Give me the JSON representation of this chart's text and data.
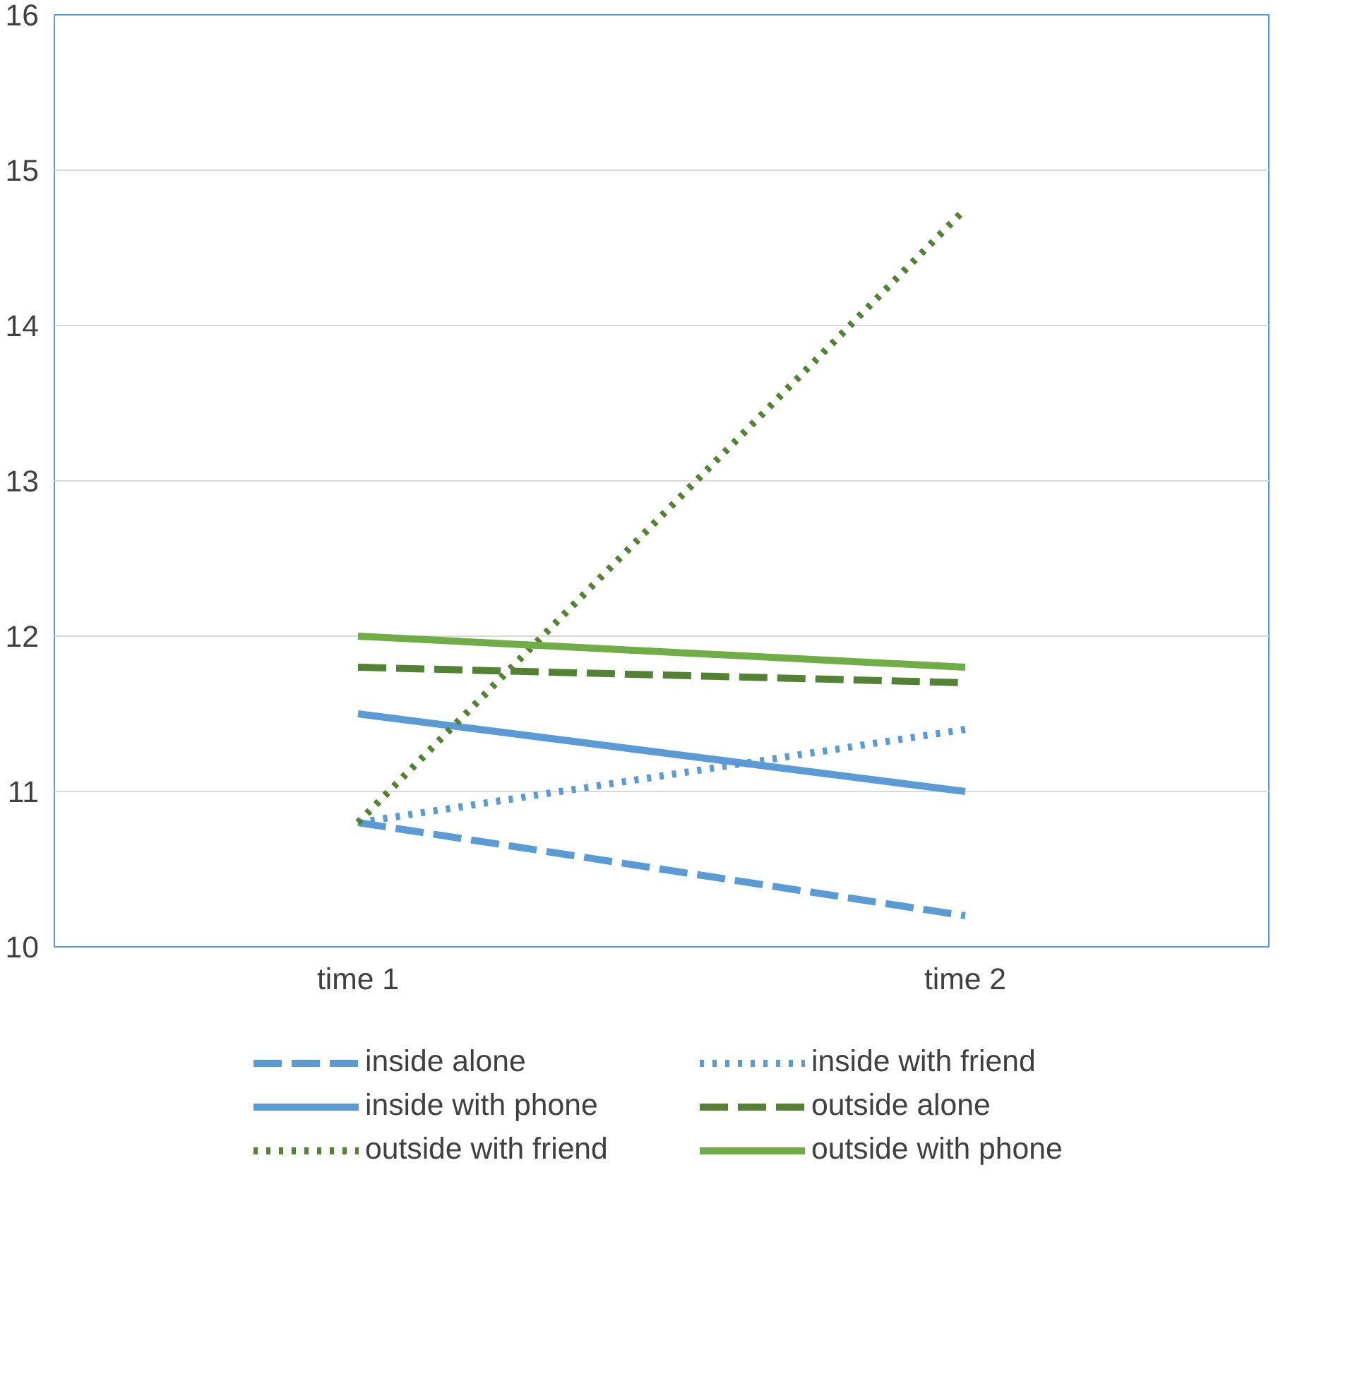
{
  "chart_data": {
    "type": "line",
    "categories": [
      "time 1",
      "time 2"
    ],
    "ylim": [
      10,
      16
    ],
    "yticks": [
      10,
      11,
      12,
      13,
      14,
      15,
      16
    ],
    "grid": "y",
    "legend": "bottom",
    "marker": "none",
    "series": [
      {
        "name": "inside alone",
        "color": "#5b9bd5",
        "line_style": "dashed",
        "values": [
          10.8,
          10.2
        ]
      },
      {
        "name": "inside with friend",
        "color": "#5b9bd5",
        "line_style": "dotted",
        "values": [
          10.8,
          11.4
        ]
      },
      {
        "name": "inside with phone",
        "color": "#5b9bd5",
        "line_style": "solid",
        "values": [
          11.5,
          11.0
        ]
      },
      {
        "name": "outside alone",
        "color": "#548235",
        "line_style": "dashed",
        "values": [
          11.8,
          11.7
        ]
      },
      {
        "name": "outside with friend",
        "color": "#548235",
        "line_style": "dotted",
        "values": [
          10.8,
          14.75
        ]
      },
      {
        "name": "outside with phone",
        "color": "#70ad47",
        "line_style": "solid",
        "values": [
          12.0,
          11.8
        ]
      }
    ]
  }
}
